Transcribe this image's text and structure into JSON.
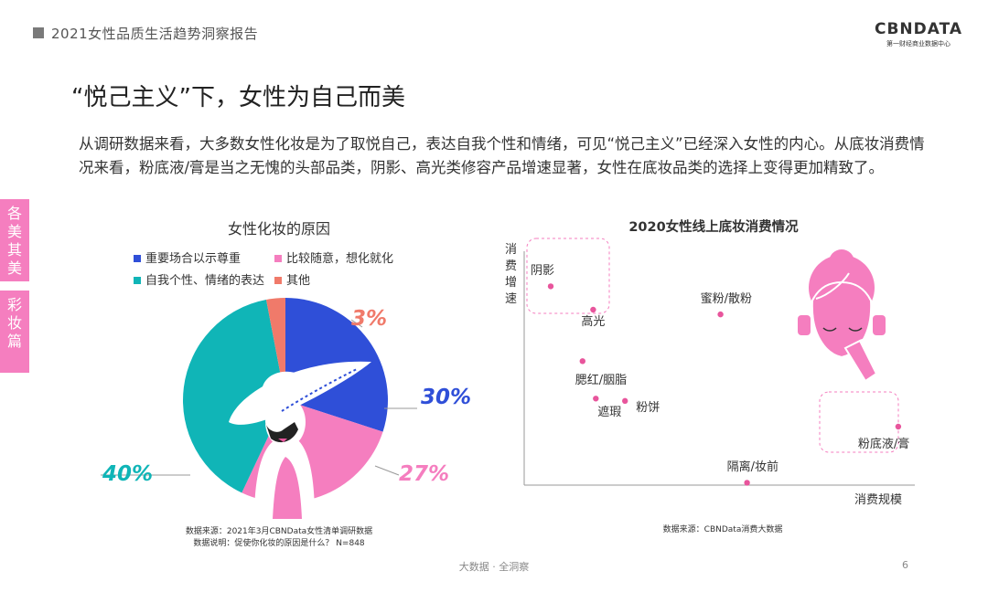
{
  "header": {
    "title": "2021女性品质生活趋势洞察报告",
    "logo_main": "CBNDATA",
    "logo_sub": "第一财经商业数据中心"
  },
  "headline": "“悦己主义”下，女性为自己而美",
  "body_text": "从调研数据来看，大多数女性化妆是为了取悦自己，表达自我个性和情绪，可见“悦己主义”已经深入女性的内心。从底妆消费情况来看，粉底液/膏是当之无愧的头部品类，阴影、高光类修容产品增速显著，女性在底妆品类的选择上变得更加精致了。",
  "side_tab": {
    "top_chars": [
      "各",
      "美",
      "其",
      "美"
    ],
    "bottom_chars": [
      "彩",
      "妆",
      "篇"
    ]
  },
  "chart_data": [
    {
      "type": "pie",
      "title": "女性化妆的原因",
      "series": [
        {
          "name": "重要场合以示尊重",
          "value": 30,
          "label": "30%",
          "color": "#2f4fd8"
        },
        {
          "name": "比较随意，想化就化",
          "value": 27,
          "label": "27%",
          "color": "#f57ebf"
        },
        {
          "name": "自我个性、情绪的表达",
          "value": 40,
          "label": "40%",
          "color": "#10b5b7"
        },
        {
          "name": "其他",
          "value": 3,
          "label": "3%",
          "color": "#f07a6a"
        }
      ],
      "source": "数据来源：2021年3月CBNData女性清单调研数据",
      "note": "数据说明：促使你化妆的原因是什么？ N=848"
    },
    {
      "type": "scatter",
      "title": "2020女性线上底妆消费情况",
      "xlabel": "消费规模",
      "ylabel": "消费增速",
      "point_color": "#e8559c",
      "points": [
        {
          "label": "阴影",
          "x": 0.1,
          "y": 0.85,
          "highlight": true
        },
        {
          "label": "高光",
          "x": 0.26,
          "y": 0.75,
          "highlight": true
        },
        {
          "label": "蜜粉/散粉",
          "x": 0.74,
          "y": 0.73,
          "highlight": false
        },
        {
          "label": "腮红/胭脂",
          "x": 0.22,
          "y": 0.53,
          "highlight": false
        },
        {
          "label": "遮瑕",
          "x": 0.27,
          "y": 0.37,
          "highlight": false
        },
        {
          "label": "粉饼",
          "x": 0.38,
          "y": 0.36,
          "highlight": false
        },
        {
          "label": "粉底液/膏",
          "x": 1.41,
          "y": 0.25,
          "highlight": true
        },
        {
          "label": "隔离/妆前",
          "x": 0.84,
          "y": 0.01,
          "highlight": false
        }
      ],
      "source": "数据来源：CBNData消费大数据"
    }
  ],
  "footer": {
    "text": "大数据 · 全洞察",
    "page": "6"
  }
}
